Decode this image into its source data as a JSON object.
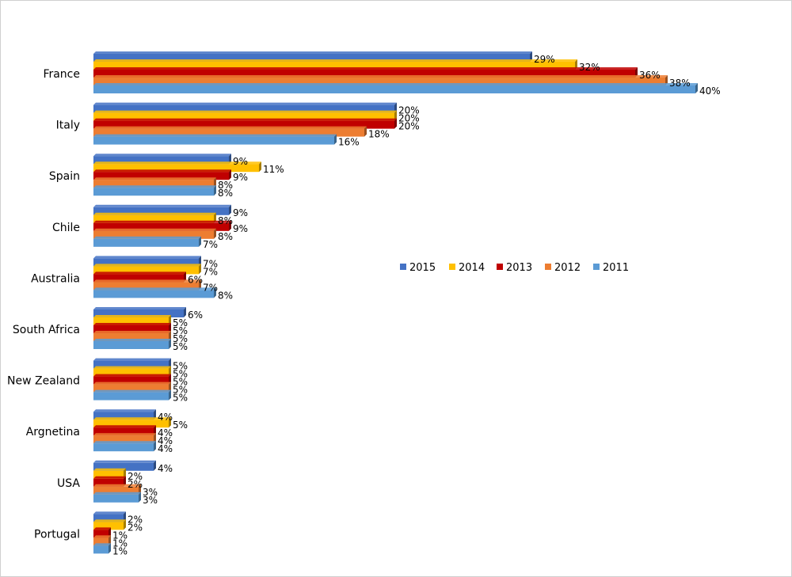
{
  "chart_data": {
    "type": "bar",
    "orientation": "horizontal",
    "title": "",
    "xlabel": "",
    "ylabel": "",
    "xlim": [
      0,
      40
    ],
    "grid": false,
    "legend_position": "center-right",
    "categories": [
      "France",
      "Italy",
      "Spain",
      "Chile",
      "Australia",
      "South Africa",
      "New Zealand",
      "Argnetina",
      "USA",
      "Portugal"
    ],
    "series": [
      {
        "name": "2015",
        "color": "#4472C4",
        "values": [
          29,
          20,
          9,
          9,
          7,
          6,
          5,
          4,
          4,
          2
        ],
        "labels": [
          "29%",
          "20%",
          "9%",
          "9%",
          "7%",
          "6%",
          "5%",
          "4%",
          "4%",
          "2%"
        ]
      },
      {
        "name": "2014",
        "color": "#FFC000",
        "values": [
          32,
          20,
          11,
          8,
          7,
          5,
          5,
          5,
          2,
          2
        ],
        "labels": [
          "32%",
          "20%",
          "11%",
          "8%",
          "7%",
          "5%",
          "5%",
          "5%",
          "2%",
          "2%"
        ]
      },
      {
        "name": "2013",
        "color": "#C00000",
        "values": [
          36,
          20,
          9,
          9,
          6,
          5,
          5,
          4,
          2,
          1
        ],
        "labels": [
          "36%",
          "20%",
          "9%",
          "9%",
          "6%",
          "5%",
          "5%",
          "4%",
          "2%",
          "1%"
        ]
      },
      {
        "name": "2012",
        "color": "#ED7D31",
        "values": [
          38,
          18,
          8,
          8,
          7,
          5,
          5,
          4,
          3,
          1
        ],
        "labels": [
          "38%",
          "18%",
          "8%",
          "8%",
          "7%",
          "5%",
          "5%",
          "4%",
          "3%",
          "1%"
        ]
      },
      {
        "name": "2011",
        "color": "#5B9BD5",
        "values": [
          40,
          16,
          8,
          7,
          8,
          5,
          5,
          4,
          3,
          1
        ],
        "labels": [
          "40%",
          "16%",
          "8%",
          "7%",
          "8%",
          "5%",
          "5%",
          "4%",
          "3%",
          "1%"
        ]
      }
    ]
  }
}
